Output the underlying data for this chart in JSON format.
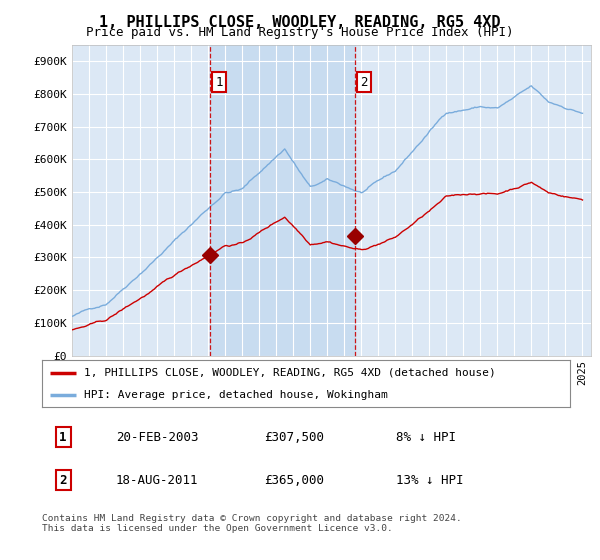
{
  "title": "1, PHILLIPS CLOSE, WOODLEY, READING, RG5 4XD",
  "subtitle": "Price paid vs. HM Land Registry's House Price Index (HPI)",
  "plot_bg_color": "#dce8f5",
  "fill_between_color": "#c8dcf0",
  "ylim": [
    0,
    950000
  ],
  "yticks": [
    0,
    100000,
    200000,
    300000,
    400000,
    500000,
    600000,
    700000,
    800000,
    900000
  ],
  "ytick_labels": [
    "£0",
    "£100K",
    "£200K",
    "£300K",
    "£400K",
    "£500K",
    "£600K",
    "£700K",
    "£800K",
    "£900K"
  ],
  "xlim_start": 1995,
  "xlim_end": 2025.5,
  "sale1_year": 2003.13,
  "sale1_price": 307500,
  "sale2_year": 2011.63,
  "sale2_price": 365000,
  "legend_entry1": "1, PHILLIPS CLOSE, WOODLEY, READING, RG5 4XD (detached house)",
  "legend_entry2": "HPI: Average price, detached house, Wokingham",
  "table_row1": [
    "1",
    "20-FEB-2003",
    "£307,500",
    "8% ↓ HPI"
  ],
  "table_row2": [
    "2",
    "18-AUG-2011",
    "£365,000",
    "13% ↓ HPI"
  ],
  "footer": "Contains HM Land Registry data © Crown copyright and database right 2024.\nThis data is licensed under the Open Government Licence v3.0.",
  "hpi_color": "#7aacdc",
  "price_color": "#cc0000",
  "vline_color": "#cc0000",
  "marker_color": "#990000",
  "label_box_color": "#cc0000",
  "grid_color": "#ffffff"
}
